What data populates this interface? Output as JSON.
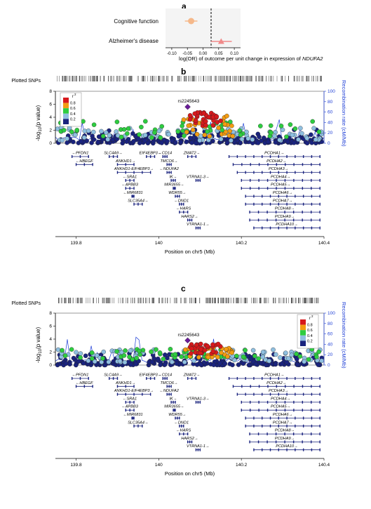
{
  "panels": {
    "a": {
      "label": "a",
      "xlabel_prefix": "log(OR) of outcome per unit change in expression of ",
      "xlabel_gene": "NDUFA2"
    },
    "b": {
      "label": "b"
    },
    "c": {
      "label": "c"
    }
  },
  "regional": {
    "plotted_snps_label": "Plotted SNPs",
    "ylabel_left_prefix": "-log",
    "ylabel_left_sub": "10",
    "ylabel_left_suffix": "(p value)",
    "ylabel_right": "Recombination rate (cM/Mb)",
    "xlabel": "Position on chr5 (Mb)",
    "lead_snp": "rs2245643",
    "legend_title": "r",
    "legend_title_sup": "2",
    "legend_ticks": [
      "0.8",
      "0.6",
      "0.4",
      "0.2"
    ],
    "ld_colors": [
      "#d7191c",
      "#f39c12",
      "#2ecc40",
      "#8fbfe0",
      "#1a237e"
    ],
    "lead_color": "#6a1b9a",
    "recomb_color": "#1f3fd6",
    "genes": [
      {
        "name": "PFDN1",
        "dir": "left"
      },
      {
        "name": "SLC4A9",
        "dir": "right"
      },
      {
        "name": "HBEGF",
        "dir": "left"
      },
      {
        "name": "ANKHD1",
        "dir": "right"
      },
      {
        "name": "ANKHD1-EIF4EBP3",
        "dir": "right"
      },
      {
        "name": "EIF4EBP3",
        "dir": "right"
      },
      {
        "name": "SRA1",
        "dir": "left"
      },
      {
        "name": "APBB3",
        "dir": "left"
      },
      {
        "name": "MIR6831",
        "dir": "left"
      },
      {
        "name": "SLC35A4",
        "dir": "right"
      },
      {
        "name": "CD14",
        "dir": "left"
      },
      {
        "name": "TMCO6",
        "dir": "right"
      },
      {
        "name": "NDUFA2",
        "dir": "left"
      },
      {
        "name": "IK",
        "dir": "right"
      },
      {
        "name": "MIR3655",
        "dir": "right"
      },
      {
        "name": "WDR55",
        "dir": "right"
      },
      {
        "name": "DND1",
        "dir": "left"
      },
      {
        "name": "HARS",
        "dir": "left"
      },
      {
        "name": "HARS2",
        "dir": "right"
      },
      {
        "name": "ZMAT2",
        "dir": "right"
      },
      {
        "name": "VTRNA1-3",
        "dir": "right"
      },
      {
        "name": "VTRNA1-1",
        "dir": "right"
      },
      {
        "name": "PCDHA1",
        "dir": "right"
      },
      {
        "name": "PCDHA2",
        "dir": "right"
      },
      {
        "name": "PCDHA3",
        "dir": "right"
      },
      {
        "name": "PCDHA4",
        "dir": "right"
      },
      {
        "name": "PCDHA5",
        "dir": "right"
      },
      {
        "name": "PCDHA6",
        "dir": "right"
      },
      {
        "name": "PCDHA7",
        "dir": "right"
      },
      {
        "name": "PCDHA8",
        "dir": "right"
      },
      {
        "name": "PCDHA9",
        "dir": "right"
      },
      {
        "name": "PCDHA10",
        "dir": "right"
      }
    ]
  },
  "chart_data": [
    {
      "type": "scatter",
      "panel": "a",
      "xlabel": "log(OR) of outcome per unit change in expression of NDUFA2",
      "xlim": [
        -0.12,
        0.12
      ],
      "x_ticks": [
        "-0.10",
        "-0.05",
        "0.00",
        "0.05",
        "0.10"
      ],
      "x_tick_values": [
        -0.1,
        -0.05,
        0.0,
        0.05,
        0.1
      ],
      "categories": [
        "Cognitive function",
        "Alzheimer's disease"
      ],
      "series": [
        {
          "name": "Cognitive function",
          "estimate": -0.038,
          "ci_low": -0.058,
          "ci_high": -0.018,
          "color": "#f5b88a"
        },
        {
          "name": "Alzheimer's disease",
          "estimate": 0.058,
          "ci_low": 0.025,
          "ci_high": 0.092,
          "color": "#f08a8a"
        }
      ]
    },
    {
      "type": "scatter",
      "panel": "b",
      "title": "",
      "xlabel": "Position on chr5 (Mb)",
      "ylabel": "-log10(p value)",
      "ylabel_right": "Recombination rate (cM/Mb)",
      "xlim": [
        139.75,
        140.4
      ],
      "x_ticks": [
        "139.8",
        "140",
        "140.2",
        "140.4"
      ],
      "ylim": [
        0,
        8
      ],
      "y_ticks": [
        "0",
        "2",
        "4",
        "6",
        "8"
      ],
      "y2_ticks": [
        "0",
        "20",
        "40",
        "60",
        "80",
        "100"
      ],
      "lead_snp": {
        "name": "rs2245643",
        "x": 140.07,
        "y": 5.6
      },
      "ld_bins": [
        "0.8-1.0",
        "0.6-0.8",
        "0.4-0.6",
        "0.2-0.4",
        "0.0-0.2"
      ],
      "ld_colors": [
        "#d7191c",
        "#f39c12",
        "#2ecc40",
        "#8fbfe0",
        "#1a237e"
      ],
      "seed": 11
    },
    {
      "type": "scatter",
      "panel": "c",
      "title": "",
      "xlabel": "Position on chr5 (Mb)",
      "ylabel": "-log10(p value)",
      "ylabel_right": "Recombination rate (cM/Mb)",
      "xlim": [
        139.75,
        140.4
      ],
      "x_ticks": [
        "139.8",
        "140",
        "140.2",
        "140.4"
      ],
      "ylim": [
        0,
        8
      ],
      "y_ticks": [
        "0",
        "2",
        "4",
        "6",
        "8"
      ],
      "y2_ticks": [
        "0",
        "20",
        "40",
        "60",
        "80",
        "100"
      ],
      "lead_snp": {
        "name": "rs2245643",
        "x": 140.07,
        "y": 3.8
      },
      "ld_bins": [
        "0.8-1.0",
        "0.6-0.8",
        "0.4-0.6",
        "0.2-0.4",
        "0.0-0.2"
      ],
      "ld_colors": [
        "#d7191c",
        "#f39c12",
        "#2ecc40",
        "#8fbfe0",
        "#1a237e"
      ],
      "seed": 29
    }
  ]
}
